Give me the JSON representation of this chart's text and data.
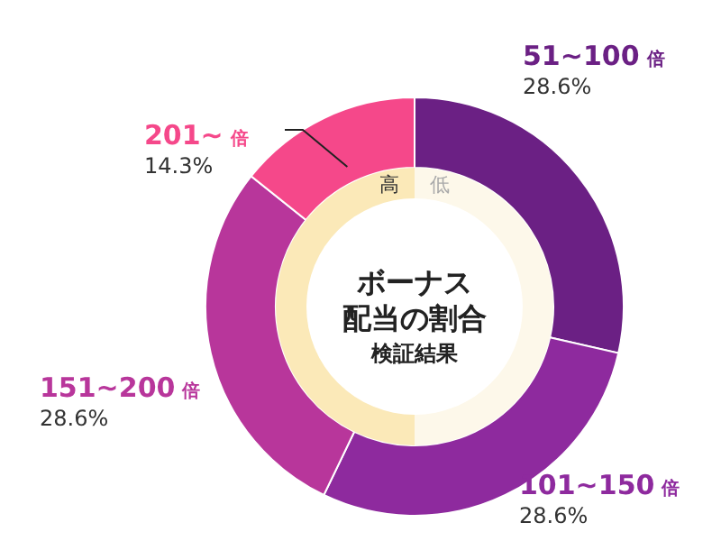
{
  "chart_data": {
    "type": "donut",
    "title": "ボーナス",
    "subtitle": "配当の割合",
    "categories": [
      "51~100 倍",
      "101~150 倍",
      "151~200 倍",
      "201~ 倍"
    ],
    "values": [
      28.6,
      28.6,
      28.6,
      14.3
    ],
    "value_labels": [
      "28.6%",
      "28.6%",
      "28.6%",
      "14.3%"
    ],
    "colors": [
      "#6b2084",
      "#8e2a9e",
      "#b8369b",
      "#f5488a"
    ],
    "annotations": [
      "高",
      "低",
      "検証結果"
    ]
  }
}
